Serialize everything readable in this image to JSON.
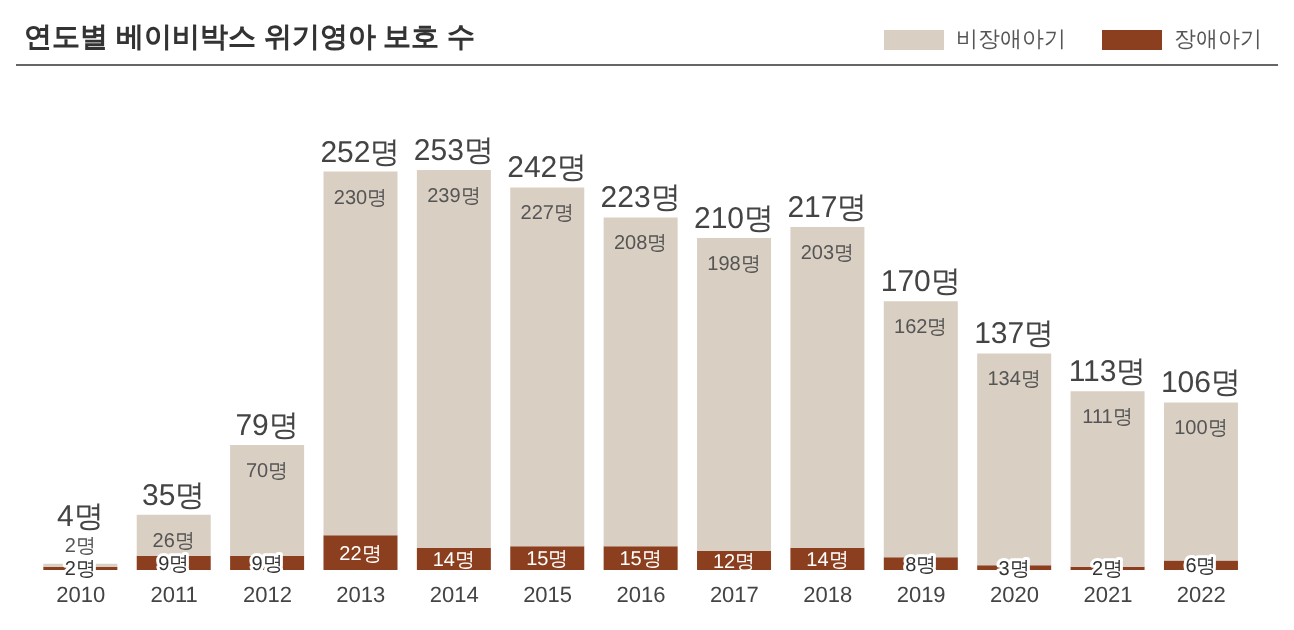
{
  "chart_data": {
    "type": "bar",
    "title": "연도별 베이비박스 위기영아 보호 수",
    "stacked": true,
    "legend": "top right",
    "categories": [
      "2010",
      "2011",
      "2012",
      "2013",
      "2014",
      "2015",
      "2016",
      "2017",
      "2018",
      "2019",
      "2020",
      "2021",
      "2022"
    ],
    "series": [
      {
        "name": "장애아기",
        "color": "#8b3f1f",
        "values": [
          2,
          9,
          9,
          22,
          14,
          15,
          15,
          12,
          14,
          8,
          3,
          2,
          6
        ],
        "value_labels": [
          "2명",
          "9명",
          "9명",
          "22명",
          "14명",
          "15명",
          "15명",
          "12명",
          "14명",
          "8명",
          "3명",
          "2명",
          "6명"
        ]
      },
      {
        "name": "비장애아기",
        "color": "#d9cfc3",
        "values": [
          2,
          26,
          70,
          230,
          239,
          227,
          208,
          198,
          203,
          162,
          134,
          111,
          100
        ],
        "value_labels": [
          "2명",
          "26명",
          "70명",
          "230명",
          "239명",
          "227명",
          "208명",
          "198명",
          "203명",
          "162명",
          "134명",
          "111명",
          "100명"
        ]
      }
    ],
    "totals": [
      "4명",
      "35명",
      "79명",
      "252명",
      "253명",
      "242명",
      "223명",
      "210명",
      "217명",
      "170명",
      "137명",
      "113명",
      "106명"
    ]
  }
}
